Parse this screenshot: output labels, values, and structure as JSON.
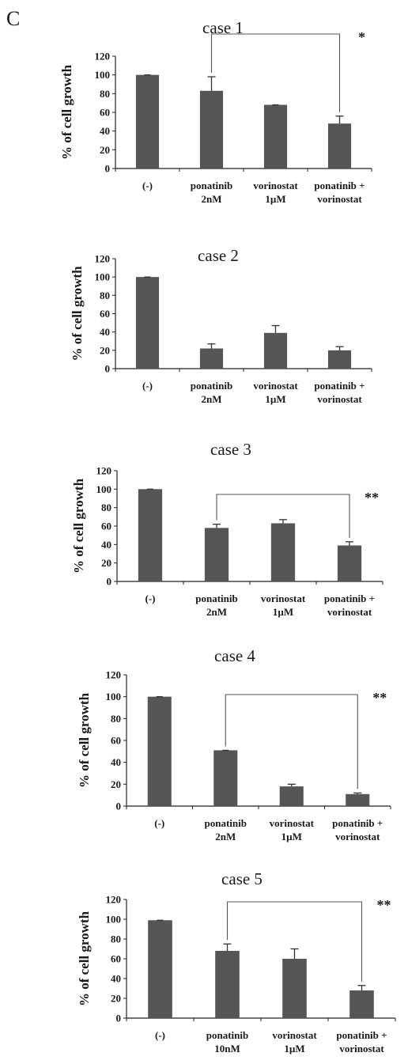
{
  "panel_label": "C",
  "chart_data": [
    {
      "type": "bar",
      "title": "case 1",
      "ylabel": "% of cell growth",
      "ylim": [
        0,
        120
      ],
      "yticks": [
        0,
        20,
        40,
        60,
        80,
        100,
        120
      ],
      "categories": [
        [
          "(-)"
        ],
        [
          "ponatinib",
          "2nM"
        ],
        [
          "vorinostat",
          "1µM"
        ],
        [
          "ponatinib +",
          "vorinostat"
        ]
      ],
      "values": [
        100,
        83,
        68,
        48
      ],
      "errors": [
        0,
        15,
        0,
        8
      ],
      "significance": {
        "from": 1,
        "to": 3,
        "label": "*"
      }
    },
    {
      "type": "bar",
      "title": "case 2",
      "ylabel": "% of cell growth",
      "ylim": [
        0,
        120
      ],
      "yticks": [
        0,
        20,
        40,
        60,
        80,
        100,
        120
      ],
      "categories": [
        [
          "(-)"
        ],
        [
          "ponatinib",
          "2nM"
        ],
        [
          "vorinostat",
          "1µM"
        ],
        [
          "ponatinib +",
          "vorinostat"
        ]
      ],
      "values": [
        100,
        22,
        39,
        20
      ],
      "errors": [
        0,
        5,
        8,
        4
      ],
      "significance": null
    },
    {
      "type": "bar",
      "title": "case 3",
      "ylabel": "% of cell growth",
      "ylim": [
        0,
        120
      ],
      "yticks": [
        0,
        20,
        40,
        60,
        80,
        100,
        120
      ],
      "categories": [
        [
          "(-)"
        ],
        [
          "ponatinib",
          "2nM"
        ],
        [
          "vorinostat",
          "1µM"
        ],
        [
          "ponatinib +",
          "vorinostat"
        ]
      ],
      "values": [
        100,
        58,
        63,
        39
      ],
      "errors": [
        0,
        4,
        4,
        4
      ],
      "significance": {
        "from": 1,
        "to": 3,
        "label": "**"
      }
    },
    {
      "type": "bar",
      "title": "case 4",
      "ylabel": "% of cell growth",
      "ylim": [
        0,
        120
      ],
      "yticks": [
        0,
        20,
        40,
        60,
        80,
        100,
        120
      ],
      "categories": [
        [
          "(-)"
        ],
        [
          "ponatinib",
          "2nM"
        ],
        [
          "vorinostat",
          "1µM"
        ],
        [
          "ponatinib +",
          "vorinostat"
        ]
      ],
      "values": [
        100,
        51,
        18,
        11
      ],
      "errors": [
        0,
        0,
        2,
        1
      ],
      "significance": {
        "from": 1,
        "to": 3,
        "label": "**"
      }
    },
    {
      "type": "bar",
      "title": "case 5",
      "ylabel": "% of cell growth",
      "ylim": [
        0,
        120
      ],
      "yticks": [
        0,
        20,
        40,
        60,
        80,
        100,
        120
      ],
      "categories": [
        [
          "(-)"
        ],
        [
          "ponatinib",
          "10nM"
        ],
        [
          "vorinostat",
          "1µM"
        ],
        [
          "ponatinib +",
          "vorinostat"
        ]
      ],
      "values": [
        99,
        68,
        60,
        28
      ],
      "errors": [
        0,
        7,
        10,
        5
      ],
      "significance": {
        "from": 1,
        "to": 3,
        "label": "**"
      }
    }
  ]
}
